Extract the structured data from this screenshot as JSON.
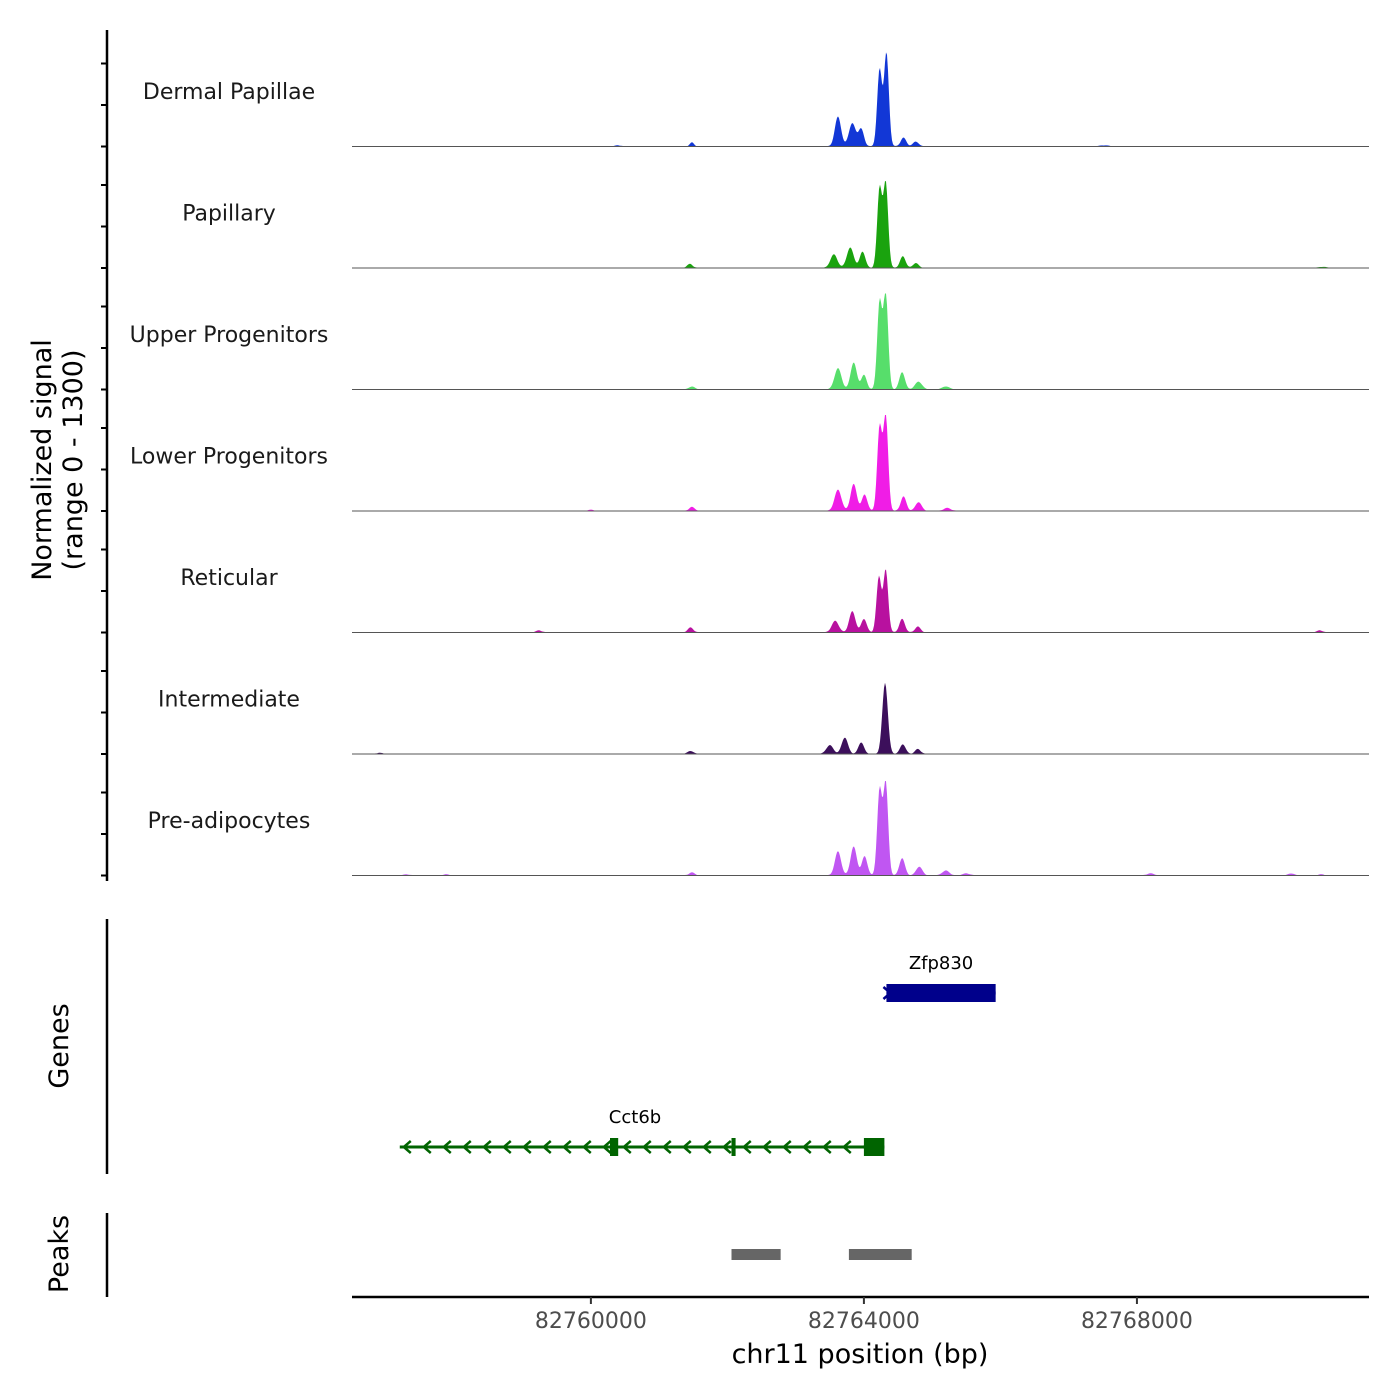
{
  "chart_data": {
    "type": "area",
    "title": "",
    "ylabel_line1": "Normalized signal",
    "ylabel_line2": "(range 0 - 1300)",
    "y_range": [
      0,
      1300
    ],
    "xlabel": "chr11 position (bp)",
    "xlim": [
      82756500,
      82771400
    ],
    "x_ticks": [
      82760000,
      82764000,
      82768000
    ],
    "x_tick_labels": [
      "82760000",
      "82764000",
      "82768000"
    ],
    "gene_track_label": "Genes",
    "peaks_track_label": "Peaks",
    "tracks": [
      {
        "name": "Dermal Papillae",
        "color": "#1237d6",
        "peaks": [
          [
            82763620,
            0.31,
            45
          ],
          [
            82763830,
            0.24,
            50
          ],
          [
            82763960,
            0.18,
            40
          ],
          [
            82764230,
            0.8,
            35
          ],
          [
            82764330,
            0.97,
            35
          ],
          [
            82764580,
            0.09,
            40
          ],
          [
            82764760,
            0.05,
            40
          ],
          [
            82761480,
            0.04,
            30
          ],
          [
            82760400,
            0.01,
            40
          ],
          [
            82767520,
            0.01,
            60
          ]
        ]
      },
      {
        "name": "Papillary",
        "color": "#1aa30e",
        "peaks": [
          [
            82763560,
            0.14,
            50
          ],
          [
            82763800,
            0.21,
            50
          ],
          [
            82763980,
            0.17,
            40
          ],
          [
            82764230,
            0.83,
            35
          ],
          [
            82764320,
            0.88,
            35
          ],
          [
            82764570,
            0.12,
            40
          ],
          [
            82764760,
            0.05,
            40
          ],
          [
            82761450,
            0.04,
            40
          ],
          [
            82770720,
            0.01,
            50
          ]
        ]
      },
      {
        "name": "Upper Progenitors",
        "color": "#57de6b",
        "peaks": [
          [
            82763620,
            0.22,
            50
          ],
          [
            82763850,
            0.28,
            45
          ],
          [
            82764000,
            0.15,
            40
          ],
          [
            82764230,
            0.91,
            35
          ],
          [
            82764320,
            1.0,
            35
          ],
          [
            82764560,
            0.18,
            40
          ],
          [
            82764800,
            0.08,
            50
          ],
          [
            82765200,
            0.03,
            50
          ],
          [
            82761480,
            0.03,
            40
          ]
        ]
      },
      {
        "name": "Lower Progenitors",
        "color": "#f01de6",
        "peaks": [
          [
            82763620,
            0.22,
            50
          ],
          [
            82763850,
            0.28,
            45
          ],
          [
            82764010,
            0.17,
            40
          ],
          [
            82764230,
            0.87,
            35
          ],
          [
            82764320,
            0.99,
            35
          ],
          [
            82764580,
            0.15,
            40
          ],
          [
            82764800,
            0.09,
            45
          ],
          [
            82765220,
            0.03,
            50
          ],
          [
            82761480,
            0.04,
            40
          ],
          [
            82760000,
            0.01,
            40
          ]
        ]
      },
      {
        "name": "Reticular",
        "color": "#b8119f",
        "peaks": [
          [
            82763580,
            0.12,
            50
          ],
          [
            82763830,
            0.22,
            45
          ],
          [
            82764000,
            0.14,
            40
          ],
          [
            82764220,
            0.58,
            35
          ],
          [
            82764320,
            0.65,
            35
          ],
          [
            82764560,
            0.14,
            40
          ],
          [
            82764790,
            0.06,
            40
          ],
          [
            82761460,
            0.05,
            40
          ],
          [
            82759240,
            0.02,
            40
          ],
          [
            82770680,
            0.02,
            40
          ]
        ]
      },
      {
        "name": "Intermediate",
        "color": "#3c0f5b",
        "peaks": [
          [
            82763500,
            0.09,
            50
          ],
          [
            82763720,
            0.17,
            45
          ],
          [
            82763960,
            0.12,
            40
          ],
          [
            82764310,
            0.74,
            40
          ],
          [
            82764570,
            0.1,
            40
          ],
          [
            82764790,
            0.05,
            40
          ],
          [
            82761460,
            0.03,
            40
          ],
          [
            82756900,
            0.01,
            40
          ]
        ]
      },
      {
        "name": "Pre-adipocytes",
        "color": "#c056f2",
        "peaks": [
          [
            82763620,
            0.25,
            45
          ],
          [
            82763850,
            0.3,
            45
          ],
          [
            82764010,
            0.2,
            40
          ],
          [
            82764230,
            0.89,
            35
          ],
          [
            82764320,
            0.96,
            35
          ],
          [
            82764560,
            0.18,
            40
          ],
          [
            82764810,
            0.09,
            45
          ],
          [
            82765200,
            0.05,
            50
          ],
          [
            82765500,
            0.02,
            50
          ],
          [
            82761480,
            0.03,
            40
          ],
          [
            82768200,
            0.02,
            50
          ],
          [
            82770260,
            0.02,
            40
          ],
          [
            82770700,
            0.01,
            40
          ],
          [
            82757300,
            0.01,
            40
          ],
          [
            82757880,
            0.01,
            40
          ]
        ]
      }
    ],
    "genes": [
      {
        "name": "Zfp830",
        "color": "#00008b",
        "strand": "+",
        "start": 82764330,
        "end": 82765930,
        "exons": [
          [
            82764330,
            82765930
          ]
        ]
      },
      {
        "name": "Cct6b",
        "color": "#006400",
        "strand": "-",
        "start": 82757200,
        "end": 82764300,
        "exons": [
          [
            82760280,
            82760400
          ],
          [
            82762060,
            82762120
          ],
          [
            82764000,
            82764300
          ]
        ]
      }
    ],
    "peaks": [
      {
        "start": 82762060,
        "end": 82762780
      },
      {
        "start": 82763780,
        "end": 82764700
      }
    ]
  }
}
